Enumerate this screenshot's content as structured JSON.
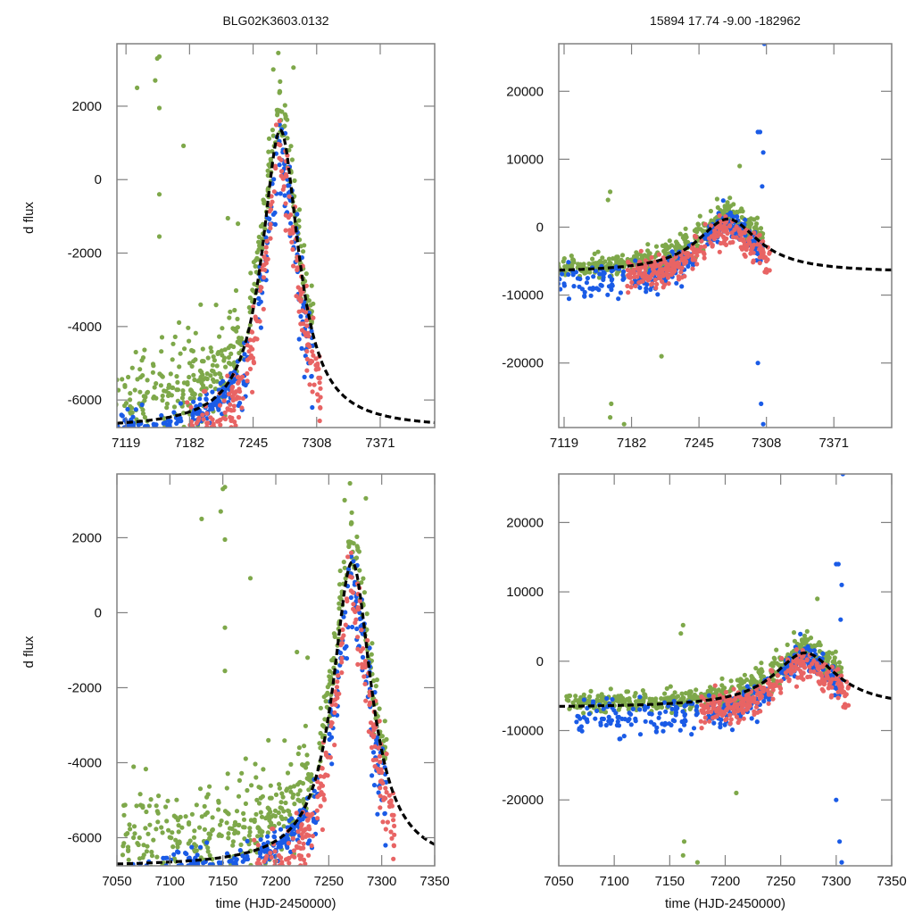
{
  "figure": {
    "colors": {
      "survey_a": "#7ea84a",
      "survey_b": "#1a5be6",
      "survey_c": "#e86464",
      "model": "#000000",
      "frame": "#808080"
    }
  },
  "chart_data": [
    {
      "id": "top-left",
      "type": "scatter",
      "title": "BLG02K3603.0132",
      "xlabel": "",
      "ylabel": "d flux",
      "xlim": [
        7110,
        7425
      ],
      "ylim": [
        -6750,
        3700
      ],
      "xticks": [
        7119,
        7182,
        7245,
        7308,
        7371
      ],
      "xtick_labels": [
        "7119",
        "7182",
        "7245",
        "7308",
        "7371"
      ],
      "yticks": [
        -6000,
        -4000,
        -2000,
        0,
        2000
      ],
      "ytick_labels": [
        "-6000",
        "-4000",
        "-2000",
        "0",
        "2000"
      ],
      "grid": false,
      "model": {
        "name": "model",
        "style": "dashed",
        "t0": 7272,
        "peak": 1350,
        "base": -6780,
        "tE": 22
      },
      "series": [
        {
          "name": "survey A (green)",
          "color_key": "survey_a"
        },
        {
          "name": "survey B (blue)",
          "color_key": "survey_b"
        },
        {
          "name": "survey C (red)",
          "color_key": "survey_c"
        }
      ]
    },
    {
      "id": "top-right",
      "type": "scatter",
      "title": "15894  17.74  -9.00  -182962",
      "xlabel": "",
      "ylabel": "",
      "xlim": [
        7114,
        7425
      ],
      "ylim": [
        -29500,
        27000
      ],
      "xticks": [
        7119,
        7182,
        7245,
        7308,
        7371
      ],
      "xtick_labels": [
        "7119",
        "7182",
        "7245",
        "7308",
        "7371"
      ],
      "yticks": [
        -20000,
        -10000,
        0,
        10000,
        20000
      ],
      "ytick_labels": [
        "-20000",
        "-10000",
        "0",
        "10000",
        "20000"
      ],
      "grid": false,
      "model": {
        "name": "model",
        "style": "dashed",
        "t0": 7272,
        "peak": 1200,
        "base": -6700,
        "tE": 35
      },
      "series": [
        {
          "name": "survey A (green)",
          "color_key": "survey_a"
        },
        {
          "name": "survey B (blue)",
          "color_key": "survey_b"
        },
        {
          "name": "survey C (red)",
          "color_key": "survey_c"
        }
      ]
    },
    {
      "id": "bottom-left",
      "type": "scatter",
      "title": "",
      "xlabel": "time (HJD-2450000)",
      "ylabel": "d flux",
      "xlim": [
        7050,
        7350
      ],
      "ylim": [
        -6750,
        3700
      ],
      "xticks": [
        7050,
        7100,
        7150,
        7200,
        7250,
        7300,
        7350
      ],
      "xtick_labels": [
        "7050",
        "7100",
        "7150",
        "7200",
        "7250",
        "7300",
        "7350"
      ],
      "yticks": [
        -6000,
        -4000,
        -2000,
        0,
        2000
      ],
      "ytick_labels": [
        "-6000",
        "-4000",
        "-2000",
        "0",
        "2000"
      ],
      "grid": false,
      "model": {
        "name": "model",
        "style": "dashed",
        "t0": 7272,
        "peak": 1350,
        "base": -6780,
        "tE": 22
      },
      "series": [
        {
          "name": "survey A (green)",
          "color_key": "survey_a"
        },
        {
          "name": "survey B (blue)",
          "color_key": "survey_b"
        },
        {
          "name": "survey C (red)",
          "color_key": "survey_c"
        }
      ]
    },
    {
      "id": "bottom-right",
      "type": "scatter",
      "title": "",
      "xlabel": "time (HJD-2450000)",
      "ylabel": "",
      "xlim": [
        7050,
        7350
      ],
      "ylim": [
        -29500,
        27000
      ],
      "xticks": [
        7050,
        7100,
        7150,
        7200,
        7250,
        7300,
        7350
      ],
      "xtick_labels": [
        "7050",
        "7100",
        "7150",
        "7200",
        "7250",
        "7300",
        "7350"
      ],
      "yticks": [
        -20000,
        -10000,
        0,
        10000,
        20000
      ],
      "ytick_labels": [
        "-20000",
        "-10000",
        "0",
        "10000",
        "20000"
      ],
      "grid": false,
      "model": {
        "name": "model",
        "style": "dashed",
        "t0": 7272,
        "peak": 1200,
        "base": -6700,
        "tE": 35
      },
      "series": [
        {
          "name": "survey A (green)",
          "color_key": "survey_a"
        },
        {
          "name": "survey B (blue)",
          "color_key": "survey_b"
        },
        {
          "name": "survey C (red)",
          "color_key": "survey_c"
        }
      ]
    }
  ]
}
